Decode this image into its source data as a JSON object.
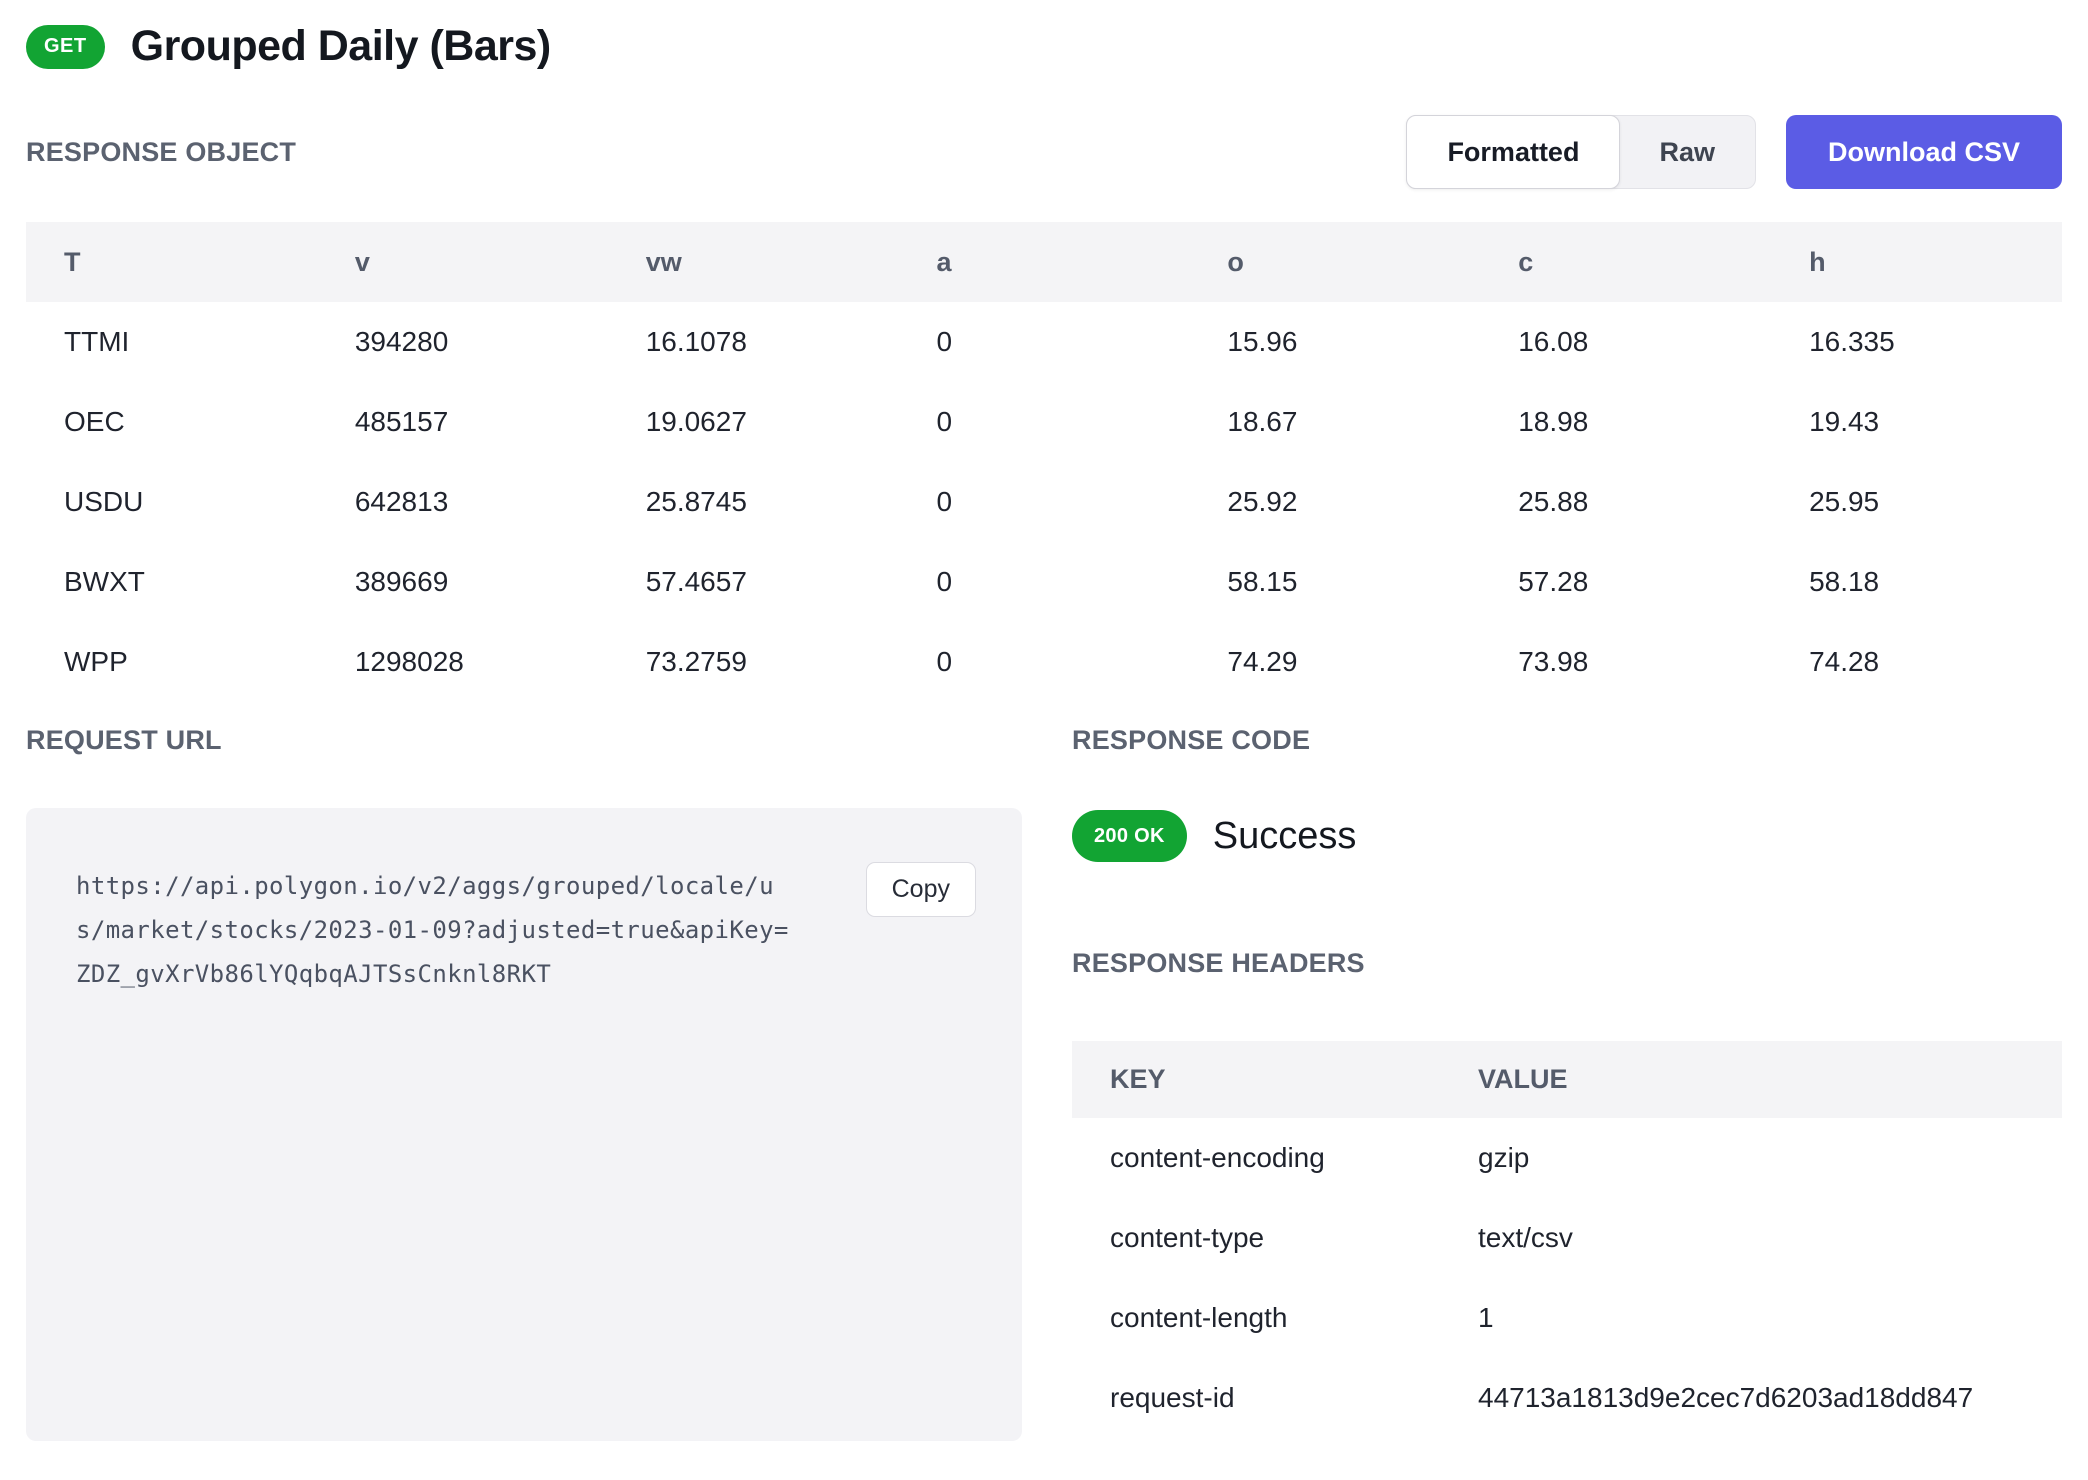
{
  "page": {
    "method": "GET",
    "title": "Grouped Daily (Bars)"
  },
  "response_object": {
    "section_label": "RESPONSE OBJECT",
    "view_toggle": {
      "formatted_label": "Formatted",
      "raw_label": "Raw",
      "active": "Formatted"
    },
    "download_button_label": "Download CSV",
    "table": {
      "columns": [
        "T",
        "v",
        "vw",
        "a",
        "o",
        "c",
        "h"
      ],
      "rows": [
        [
          "TTMI",
          "394280",
          "16.1078",
          "0",
          "15.96",
          "16.08",
          "16.335"
        ],
        [
          "OEC",
          "485157",
          "19.0627",
          "0",
          "18.67",
          "18.98",
          "19.43"
        ],
        [
          "USDU",
          "642813",
          "25.8745",
          "0",
          "25.92",
          "25.88",
          "25.95"
        ],
        [
          "BWXT",
          "389669",
          "57.4657",
          "0",
          "58.15",
          "57.28",
          "58.18"
        ],
        [
          "WPP",
          "1298028",
          "73.2759",
          "0",
          "74.29",
          "73.98",
          "74.28"
        ]
      ]
    }
  },
  "request_url": {
    "section_label": "REQUEST URL",
    "url": "https://api.polygon.io/v2/aggs/grouped/locale/us/market/stocks/2023-01-09?adjusted=true&apiKey=ZDZ_gvXrVb86lYQqbqAJTSsCnknl8RKT",
    "display_lines": [
      "https://api.polygon.io/v2/aggs/grouped/locale/u",
      "s/market/stocks/2023-01-09?adjusted=true&apiKey=",
      "ZDZ_gvXrVb86lYQqbqAJTSsCnknl8RKT"
    ],
    "copy_button_label": "Copy"
  },
  "response_code": {
    "section_label": "RESPONSE CODE",
    "status_badge": "200 OK",
    "status_text": "Success"
  },
  "response_headers": {
    "section_label": "RESPONSE HEADERS",
    "columns": [
      "KEY",
      "VALUE"
    ],
    "rows": [
      {
        "key": "content-encoding",
        "value": "gzip"
      },
      {
        "key": "content-type",
        "value": "text/csv"
      },
      {
        "key": "content-length",
        "value": "1"
      },
      {
        "key": "request-id",
        "value": "44713a1813d9e2cec7d6203ad18dd847"
      }
    ]
  },
  "colors": {
    "method_green": "#12a433",
    "accent_indigo": "#5b5ce5",
    "table_header_bg": "#f4f4f6",
    "code_block_bg": "#f3f3f6"
  }
}
